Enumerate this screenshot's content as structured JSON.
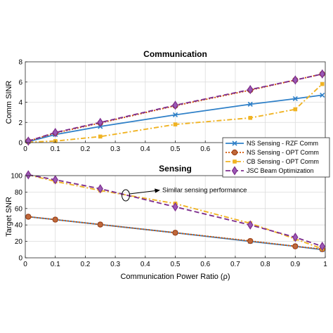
{
  "chart_data": [
    {
      "type": "line",
      "title": "Communication",
      "xlabel": "",
      "ylabel": "Comm SINR",
      "xlim": [
        0,
        1
      ],
      "ylim": [
        0,
        8
      ],
      "xticks": [
        0,
        0.1,
        0.2,
        0.3,
        0.4,
        0.5,
        0.6,
        0.7,
        0.8,
        0.9,
        1
      ],
      "xtick_labels": [
        "0",
        "0.1",
        "0.2",
        "0.3",
        "0.4",
        "0.5",
        "0.6",
        "0.7",
        "0.8",
        "0.9",
        "1"
      ],
      "yticks": [
        0,
        2,
        4,
        6,
        8
      ],
      "grid": true,
      "legend_position": "bottom-right",
      "series": [
        {
          "name": "NS Sensing - RZF Comm",
          "color": "#2f80c8",
          "style": "solid",
          "marker": "x",
          "x": [
            0.01,
            0.1,
            0.25,
            0.5,
            0.75,
            0.9,
            0.99
          ],
          "y": [
            0.1,
            0.8,
            1.6,
            2.75,
            3.8,
            4.35,
            4.7
          ]
        },
        {
          "name": "NS Sensing - OPT Comm",
          "color": "#d35400",
          "style": "dotted",
          "marker": "o",
          "x": [
            0.01,
            0.1,
            0.25,
            0.5,
            0.75,
            0.9,
            0.99
          ],
          "y": [
            0.15,
            0.95,
            1.95,
            3.65,
            5.2,
            6.2,
            6.8
          ]
        },
        {
          "name": "CB Sensing - OPT Comm",
          "color": "#f0b323",
          "style": "dashdot",
          "marker": "s",
          "x": [
            0.01,
            0.1,
            0.25,
            0.5,
            0.75,
            0.9,
            0.99
          ],
          "y": [
            0.05,
            0.15,
            0.6,
            1.8,
            2.45,
            3.3,
            5.8
          ]
        },
        {
          "name": "JSC Beam Optimization",
          "color": "#7e2f8e",
          "style": "dashed",
          "marker": "d",
          "x": [
            0.01,
            0.1,
            0.25,
            0.5,
            0.75,
            0.9,
            0.99
          ],
          "y": [
            0.15,
            1.0,
            2.0,
            3.7,
            5.25,
            6.2,
            6.8
          ]
        }
      ]
    },
    {
      "type": "line",
      "title": "Sensing",
      "xlabel": "Communication Power Ratio (ρ)",
      "ylabel": "Target SNR",
      "xlim": [
        0,
        1
      ],
      "ylim": [
        0,
        100
      ],
      "xticks": [
        0,
        0.1,
        0.2,
        0.3,
        0.4,
        0.5,
        0.6,
        0.7,
        0.8,
        0.9,
        1
      ],
      "xtick_labels": [
        "0",
        "0.1",
        "0.2",
        "0.3",
        "0.4",
        "0.5",
        "0.6",
        "0.7",
        "0.8",
        "0.9",
        "1"
      ],
      "yticks": [
        0,
        20,
        40,
        60,
        80,
        100
      ],
      "grid": true,
      "annotation": "Similar sensing performance",
      "series": [
        {
          "name": "NS Sensing - RZF Comm",
          "color": "#2f80c8",
          "style": "solid",
          "marker": "x",
          "x": [
            0.01,
            0.1,
            0.25,
            0.5,
            0.75,
            0.9,
            0.99
          ],
          "y": [
            50,
            46.5,
            40.5,
            30.5,
            20,
            14,
            10
          ]
        },
        {
          "name": "NS Sensing - OPT Comm",
          "color": "#d35400",
          "style": "dotted",
          "marker": "o",
          "x": [
            0.01,
            0.1,
            0.25,
            0.5,
            0.75,
            0.9,
            0.99
          ],
          "y": [
            50,
            46.5,
            40.5,
            30.5,
            20.5,
            14,
            10.5
          ]
        },
        {
          "name": "CB Sensing - OPT Comm",
          "color": "#f0b323",
          "style": "dashdot",
          "marker": "s",
          "x": [
            0.01,
            0.1,
            0.25,
            0.5,
            0.75,
            0.9,
            0.99
          ],
          "y": [
            101,
            93,
            82,
            66,
            42,
            23,
            11
          ]
        },
        {
          "name": "JSC Beam Optimization",
          "color": "#7e2f8e",
          "style": "dashed",
          "marker": "d",
          "x": [
            0.01,
            0.1,
            0.25,
            0.5,
            0.75,
            0.9,
            0.99
          ],
          "y": [
            101,
            95,
            84,
            62,
            40,
            25,
            14
          ]
        }
      ]
    }
  ]
}
